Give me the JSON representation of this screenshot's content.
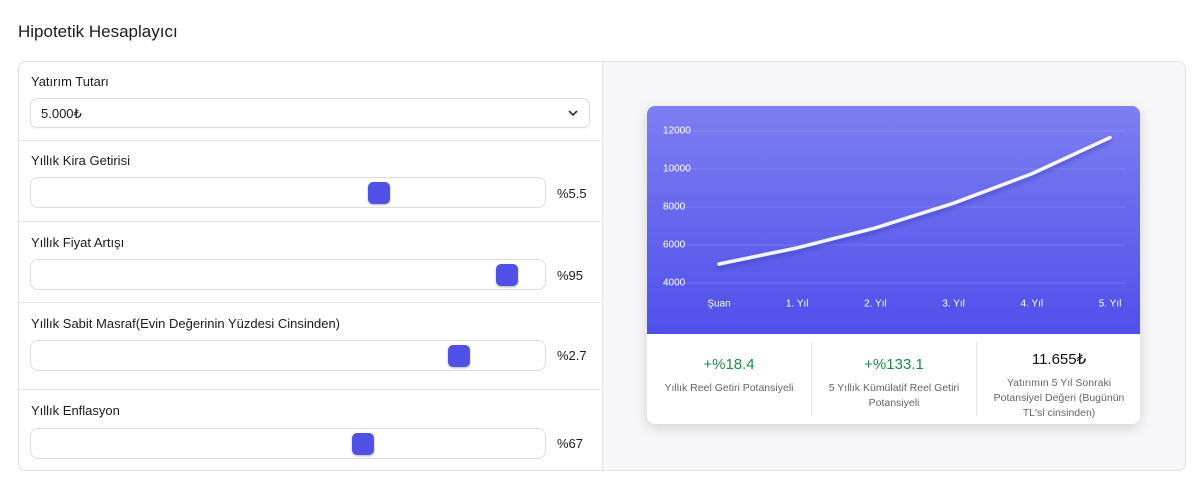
{
  "title": "Hipotetik Hesaplayıcı",
  "inputs": [
    {
      "label": "Yatırım Tutarı",
      "value": "5.000₺"
    },
    {
      "label": "Yıllık Kira Getirisi",
      "value": "%5.5"
    },
    {
      "label": "Yıllık Fiyat Artışı",
      "value": "%95"
    },
    {
      "label": "Yıllık Sabit Masraf(Evin Değerinin Yüzdesi Cinsinden)",
      "value": "%2.7"
    },
    {
      "label": "Yıllık Enflasyon",
      "value": "%67"
    }
  ],
  "chart_data": {
    "type": "line",
    "categories": [
      "Şuan",
      "1. Yıl",
      "2. Yıl",
      "3. Yıl",
      "4. Yıl",
      "5. Yıl"
    ],
    "series": [
      {
        "color": "#f4f4ff",
        "values": [
          5000,
          5850,
          6900,
          8200,
          9750,
          11655
        ]
      }
    ],
    "ylim": [
      4000,
      12000
    ],
    "yticks": [
      4000,
      6000,
      8000,
      10000,
      12000
    ],
    "grid": true
  },
  "stats": [
    {
      "value": "+%18.4",
      "label": "Yıllık Reel Getiri Potansiyeli"
    },
    {
      "value": "+%133.1",
      "label": "5 Yıllık Kümülatif Reel Getiri Potansiyeli"
    },
    {
      "value": "11.655₺",
      "label": "Yatırımın 5 Yıl Sonraki Potansiyel Değeri (Bugünün TL'si cinsinden)"
    }
  ]
}
